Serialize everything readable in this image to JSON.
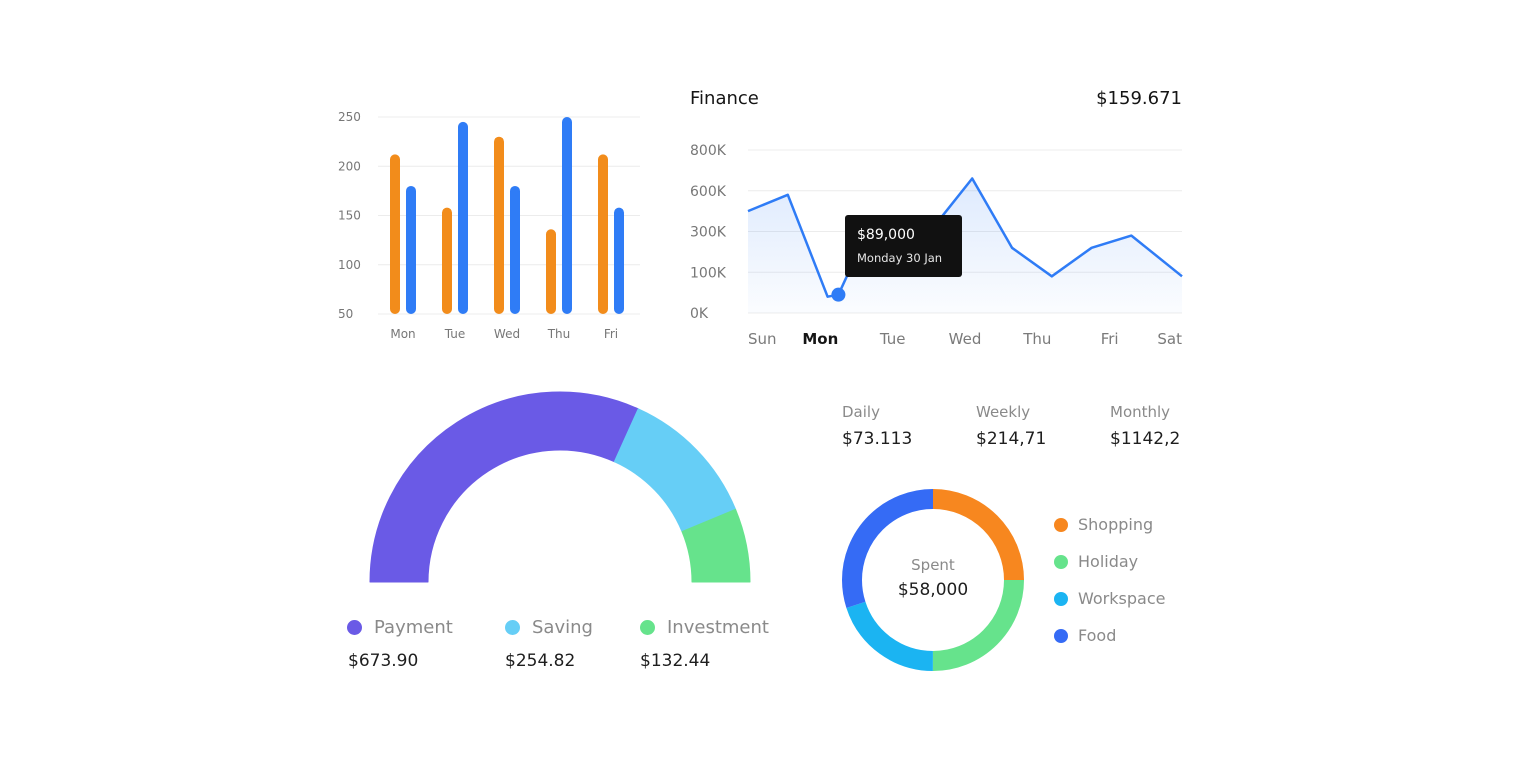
{
  "chart_data": [
    {
      "type": "bar",
      "categories": [
        "Mon",
        "Tue",
        "Wed",
        "Thu",
        "Fri"
      ],
      "series": [
        {
          "values": [
            212,
            158,
            230,
            136,
            212
          ]
        },
        {
          "values": [
            180,
            245,
            180,
            250,
            158
          ]
        }
      ],
      "y_ticks": [
        "250",
        "200",
        "150",
        "100",
        "50"
      ],
      "ylim": [
        50,
        250
      ],
      "colors": [
        "#F28C1B",
        "#2F7CF6"
      ],
      "grid": true
    },
    {
      "type": "area",
      "title": "Finance",
      "total": "$159.671",
      "categories": [
        "Sun",
        "Mon",
        "Tue",
        "Wed",
        "Thu",
        "Fri",
        "Sat"
      ],
      "y_ticks": [
        "800K",
        "600K",
        "300K",
        "100K",
        "0K"
      ],
      "points": [
        {
          "x": 0,
          "tick": 2.5
        },
        {
          "x": 0.55,
          "tick": 2.9
        },
        {
          "x": 1.1,
          "tick": 0.4
        },
        {
          "x": 1.25,
          "tick": 0.45
        },
        {
          "x": 1.6,
          "tick": 1.8
        },
        {
          "x": 2.0,
          "tick": 1.4
        },
        {
          "x": 2.65,
          "tick": 2.3
        },
        {
          "x": 3.1,
          "tick": 3.3
        },
        {
          "x": 3.65,
          "tick": 1.6
        },
        {
          "x": 4.2,
          "tick": 0.9
        },
        {
          "x": 4.75,
          "tick": 1.6
        },
        {
          "x": 5.3,
          "tick": 1.9
        },
        {
          "x": 6.0,
          "tick": 0.9
        }
      ],
      "highlight": {
        "x": 1.25,
        "tick": 0.45,
        "value": "$89,000",
        "label": "Monday 30 Jan"
      },
      "active_category": "Mon",
      "color": "#2F7CF6",
      "grid": true
    },
    {
      "type": "pie",
      "variant": "semi-donut",
      "labels": [
        "Payment",
        "Saving",
        "Investment"
      ],
      "values": [
        673.9,
        254.82,
        132.44
      ],
      "display_values": [
        "$673.90",
        "$254.82",
        "$132.44"
      ],
      "colors": [
        "#6A5AE6",
        "#66CEF6",
        "#66E38C"
      ]
    },
    {
      "type": "pie",
      "variant": "donut",
      "center_label": "Spent",
      "center_value": "$58,000",
      "labels": [
        "Shopping",
        "Holiday",
        "Workspace",
        "Food"
      ],
      "values": [
        25,
        25,
        20,
        30
      ],
      "colors": [
        "#F7871F",
        "#66E38C",
        "#1BB4F2",
        "#356BF5"
      ]
    }
  ],
  "stats": [
    {
      "label": "Daily",
      "value": "$73.113"
    },
    {
      "label": "Weekly",
      "value": "$214,71"
    },
    {
      "label": "Monthly",
      "value": "$1142,2"
    }
  ]
}
